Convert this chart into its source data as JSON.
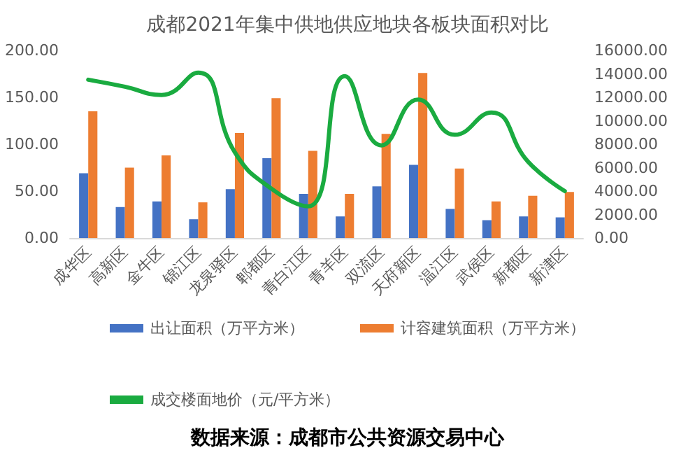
{
  "chart_data": {
    "type": "bar",
    "title": "成都2021年集中供地供应地块各板块面积对比",
    "categories": [
      "成华区",
      "高新区",
      "金牛区",
      "锦江区",
      "龙泉驿区",
      "郫都区",
      "青白江区",
      "青羊区",
      "双流区",
      "天府新区",
      "温江区",
      "武侯区",
      "新都区",
      "新津区"
    ],
    "series": [
      {
        "name": "出让面积（万平方米）",
        "color": "#4472c4",
        "values": [
          69,
          33,
          39,
          20,
          52,
          85,
          47,
          23,
          55,
          78,
          31,
          19,
          23,
          22
        ]
      },
      {
        "name": "计容建筑面积（万平方米）",
        "color": "#ed7d31",
        "values": [
          135,
          75,
          88,
          38,
          112,
          149,
          93,
          47,
          111,
          176,
          74,
          39,
          45,
          49
        ]
      },
      {
        "name": "成交楼面地价（元/平方米）",
        "type": "line",
        "axis": "y2",
        "color": "#1aab40",
        "values": [
          13500,
          12900,
          12200,
          14100,
          7300,
          4200,
          2700,
          13800,
          7900,
          11800,
          8800,
          10700,
          6500,
          4000
        ]
      }
    ],
    "ylim": [
      0,
      200
    ],
    "yticks": [
      {
        "value": 0,
        "label": "0.00"
      },
      {
        "value": 50,
        "label": "50.00"
      },
      {
        "value": 100,
        "label": "100.00"
      },
      {
        "value": 150,
        "label": "150.00"
      },
      {
        "value": 200,
        "label": "200.00"
      }
    ],
    "y2lim": [
      0,
      16000
    ],
    "y2ticks": [
      {
        "value": 0,
        "label": "0.00"
      },
      {
        "value": 2000,
        "label": "2000.00"
      },
      {
        "value": 4000,
        "label": "4000.00"
      },
      {
        "value": 6000,
        "label": "6000.00"
      },
      {
        "value": 8000,
        "label": "8000.00"
      },
      {
        "value": 10000,
        "label": "10000.00"
      },
      {
        "value": 12000,
        "label": "12000.00"
      },
      {
        "value": 14000,
        "label": "14000.00"
      },
      {
        "value": 16000,
        "label": "16000.00"
      }
    ],
    "grid": false,
    "legend": "bottom",
    "marker": "none",
    "annotations": [
      "数据来源：成都市公共资源交易中心"
    ]
  }
}
